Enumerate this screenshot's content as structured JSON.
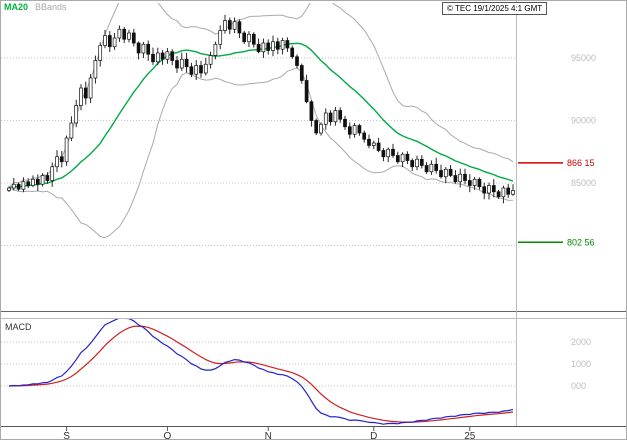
{
  "legend": {
    "ma20": "MA20",
    "bbands": "BBands"
  },
  "copyright": "© TEC 19/1/2025 4:1 GMT",
  "macd_panel": {
    "label": "MACD"
  },
  "colors": {
    "candle": "#111111",
    "ma20": "#00aa44",
    "bbands": "#aaaaaa",
    "macd_line": "#2222cc",
    "macd_signal": "#cc2222",
    "grid": "#c8c8c8",
    "axis_text": "#bdbdbd",
    "resistance": "#cc0000",
    "support": "#008800"
  },
  "chart_data": {
    "type": "candlestick",
    "title": "Daily price chart with MA20, Bollinger Bands and MACD",
    "ylim": [
      74900,
      99400
    ],
    "closes": [
      84600,
      84900,
      84500,
      85100,
      84800,
      85300,
      84900,
      85600,
      85200,
      86300,
      87100,
      86700,
      88600,
      89800,
      91200,
      92600,
      91800,
      93400,
      94800,
      96000,
      96800,
      95900,
      96600,
      97300,
      96500,
      97000,
      96200,
      95400,
      96100,
      95300,
      94700,
      95400,
      94900,
      95500,
      94800,
      94200,
      94900,
      94300,
      93700,
      94400,
      93800,
      94500,
      95200,
      96100,
      97200,
      98000,
      97300,
      97900,
      97000,
      96300,
      96900,
      96100,
      95500,
      96200,
      95600,
      96300,
      95700,
      96400,
      95800,
      95100,
      94400,
      93200,
      91500,
      90000,
      89000,
      89700,
      90600,
      89900,
      90800,
      90100,
      89500,
      88900,
      89600,
      89000,
      88500,
      88000,
      88200,
      87600,
      87100,
      87700,
      87200,
      86700,
      87300,
      86800,
      86300,
      86900,
      86400,
      85900,
      86500,
      86000,
      85500,
      86100,
      85600,
      85100,
      85700,
      85200,
      84800,
      85300,
      84700,
      84200,
      84800,
      84300,
      83900,
      84600,
      84100,
      84400
    ],
    "months": [
      {
        "label": "S",
        "index": 12
      },
      {
        "label": "O",
        "index": 33
      },
      {
        "label": "N",
        "index": 54
      },
      {
        "label": "D",
        "index": 76
      },
      {
        "label": "25",
        "index": 96
      }
    ],
    "price_ticks": [
      {
        "label": "95000",
        "value": 95000
      },
      {
        "label": "90000",
        "value": 90000
      },
      {
        "label": "85000",
        "value": 85000
      }
    ],
    "price_gridlines": [
      95000,
      90000,
      85000,
      80000
    ],
    "levels": [
      {
        "label": "866 15",
        "value": 86615,
        "color": "#cc0000"
      },
      {
        "label": "802 56",
        "value": 80256,
        "color": "#008800"
      }
    ],
    "overlays": [
      {
        "name": "MA20",
        "type": "sma",
        "period": 20
      },
      {
        "name": "BBands",
        "type": "bollinger",
        "period": 20,
        "stddev": 2
      }
    ],
    "macd": {
      "fast": 12,
      "slow": 26,
      "signal": 9,
      "ticks": [
        {
          "label": "2000",
          "value": 2000
        },
        {
          "label": "1000",
          "value": 1000
        },
        {
          "label": "000",
          "value": 0
        }
      ]
    }
  }
}
